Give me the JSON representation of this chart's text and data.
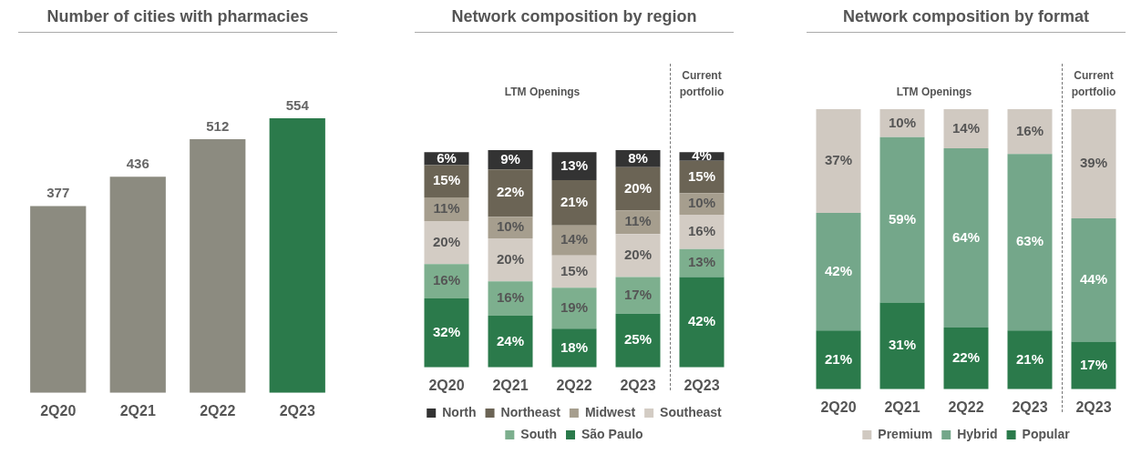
{
  "chart_data": [
    {
      "type": "bar",
      "title": "Number of cities with pharmacies",
      "categories": [
        "2Q20",
        "2Q21",
        "2Q22",
        "2Q23"
      ],
      "values": [
        377,
        436,
        512,
        554
      ],
      "colors": [
        "#8c8b80",
        "#8c8b80",
        "#8c8b80",
        "#2b7a4b"
      ],
      "data_labels": true,
      "legend": false
    },
    {
      "type": "bar",
      "title": "Network composition by region",
      "stacked": true,
      "legend": "bottom",
      "annotations": [
        "LTM Openings",
        "Current portfolio"
      ],
      "categories": [
        "2Q20",
        "2Q21",
        "2Q22",
        "2Q23",
        "2Q23"
      ],
      "series": [
        {
          "name": "São Paulo",
          "color": "#2b7a4b",
          "values": [
            32,
            24,
            18,
            25,
            42
          ],
          "value_labels": [
            "32%",
            "24%",
            "18%",
            "25%",
            "42%"
          ]
        },
        {
          "name": "South",
          "color": "#7daf8e",
          "values": [
            16,
            16,
            19,
            17,
            13
          ],
          "value_labels": [
            "16%",
            "16%",
            "19%",
            "17%",
            "13%"
          ]
        },
        {
          "name": "Southeast",
          "color": "#d3ccc4",
          "values": [
            20,
            20,
            15,
            20,
            16
          ],
          "value_labels": [
            "20%",
            "20%",
            "15%",
            "20%",
            "16%"
          ]
        },
        {
          "name": "Midwest",
          "color": "#a69e8e",
          "values": [
            11,
            10,
            14,
            11,
            10
          ],
          "value_labels": [
            "11%",
            "10%",
            "14%",
            "11%",
            "10%"
          ]
        },
        {
          "name": "Northeast",
          "color": "#6b6455",
          "values": [
            15,
            22,
            21,
            20,
            15
          ],
          "value_labels": [
            "15%",
            "22%",
            "21%",
            "20%",
            "15%"
          ]
        },
        {
          "name": "North",
          "color": "#333333",
          "values": [
            6,
            9,
            13,
            8,
            4
          ],
          "value_labels": [
            "6%",
            "9%",
            "13%",
            "8%",
            "4%"
          ]
        }
      ]
    },
    {
      "type": "bar",
      "title": "Network composition by format",
      "stacked": true,
      "legend": "bottom",
      "annotations": [
        "LTM Openings",
        "Current portfolio"
      ],
      "categories": [
        "2Q20",
        "2Q21",
        "2Q22",
        "2Q23",
        "2Q23"
      ],
      "series": [
        {
          "name": "Popular",
          "color": "#2b7a4b",
          "values": [
            21,
            31,
            22,
            21,
            17
          ],
          "value_labels": [
            "21%",
            "31%",
            "22%",
            "21%",
            "17%"
          ]
        },
        {
          "name": "Hybrid",
          "color": "#74a78a",
          "values": [
            42,
            59,
            64,
            63,
            44
          ],
          "value_labels": [
            "42%",
            "59%",
            "64%",
            "63%",
            "44%"
          ]
        },
        {
          "name": "Premium",
          "color": "#d0c9c1",
          "values": [
            37,
            10,
            14,
            16,
            39
          ],
          "value_labels": [
            "37%",
            "10%",
            "14%",
            "16%",
            "39%"
          ]
        }
      ]
    }
  ]
}
